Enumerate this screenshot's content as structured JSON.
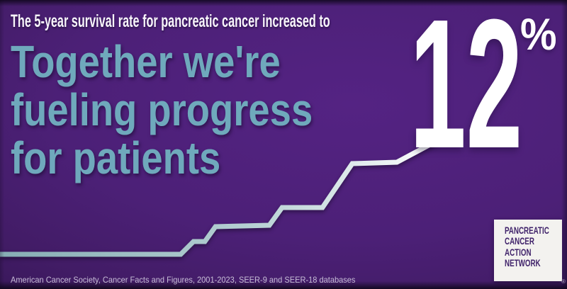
{
  "top_line": "The 5-year survival rate for pancreatic cancer increased to",
  "stat": {
    "value": "12",
    "unit": "%"
  },
  "headline": {
    "line1": "Together we're",
    "line2": "fueling progress",
    "line3": "for patients"
  },
  "source_text": "American Cancer Society, Cancer Facts and Figures, 2001-2023, SEER-9 and SEER-18 databases",
  "logo": {
    "line1": "PANCREATIC",
    "line2": "CANCER",
    "line3": "ACTION",
    "line4": "NETWORK",
    "registered": "®"
  },
  "colors": {
    "background_center": "#542383",
    "background_edge": "#281040",
    "headline_teal": "#6fa9bc",
    "text_white": "#f7f5fa",
    "source_text": "#c6bdd6",
    "logo_purple": "#41246b",
    "logo_background": "#f3f2ef",
    "line_gradient_start": "#86adb4",
    "line_gradient_mid": "#b6d0d3",
    "line_gradient_end": "#ffffff"
  },
  "chart_data": {
    "type": "line",
    "style": "step-ascending-decorative",
    "title": "The 5-year survival rate for pancreatic cancer increased to 12%",
    "final_value_pct": 12,
    "axes_shown": false,
    "legend": "none",
    "description": "Stylized white-teal step line rising from the lower left edge in successive plateaus and merging into the bottom of the large '12%' figure; no axis ticks or data labels are shown. Time span implied by the citation is 2001-2023.",
    "polyline_points": "0,359 255,359 273,341 289,341 304,320 380,318 398,293 455,293 497,231 560,229 620,197"
  }
}
